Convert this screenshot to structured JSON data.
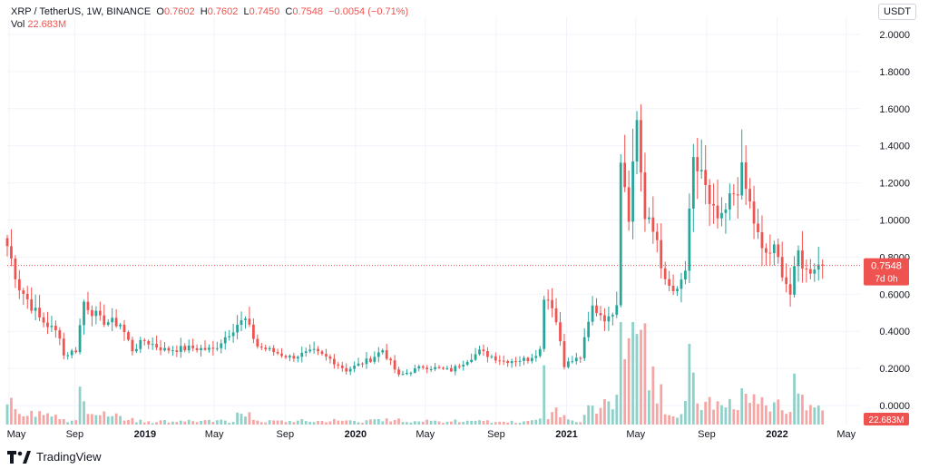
{
  "header": {
    "symbol": "XRP / TetherUS, 1W, BINANCE",
    "o_label": "O",
    "o_value": "0.7602",
    "h_label": "H",
    "h_value": "0.7602",
    "l_label": "L",
    "l_value": "0.7450",
    "c_label": "C",
    "c_value": "0.7548",
    "change": "−0.0054 (−0.71%)",
    "vol_label": "Vol",
    "vol_value": "22.683M"
  },
  "currency_button": "USDT",
  "price_tag": {
    "price": "0.7548",
    "countdown": "7d 0h"
  },
  "volume_tag": "22.683M",
  "footer": {
    "brand": "TradingView"
  },
  "colors": {
    "up": "#26a69a",
    "down": "#ef5350",
    "up_volume": "#8fd0c8",
    "down_volume": "#f5a5a3",
    "grid": "#f0f3fa"
  },
  "chart_data": {
    "type": "candlestick",
    "title": "XRP / TetherUS, 1W, BINANCE",
    "ylim": [
      0,
      2.0
    ],
    "y_ticks": [
      "2.0000",
      "1.8000",
      "1.6000",
      "1.4000",
      "1.2000",
      "1.0000",
      "0.8000",
      "0.6000",
      "0.4000",
      "0.2000",
      "0.0000"
    ],
    "x_ticks": [
      "May",
      "Sep",
      "2019",
      "May",
      "Sep",
      "2020",
      "May",
      "Sep",
      "2021",
      "May",
      "Sep",
      "2022",
      "May"
    ],
    "last_price": 0.7548,
    "close_anchors": [
      [
        "2018-05-07",
        0.86
      ],
      [
        "2018-05-28",
        0.64
      ],
      [
        "2018-07-02",
        0.47
      ],
      [
        "2018-08-06",
        0.38
      ],
      [
        "2018-08-13",
        0.27
      ],
      [
        "2018-09-03",
        0.3
      ],
      [
        "2018-09-17",
        0.56
      ],
      [
        "2018-10-15",
        0.46
      ],
      [
        "2018-11-19",
        0.44
      ],
      [
        "2018-12-10",
        0.3
      ],
      [
        "2018-12-31",
        0.35
      ],
      [
        "2019-02-04",
        0.3
      ],
      [
        "2019-03-25",
        0.31
      ],
      [
        "2019-04-29",
        0.3
      ],
      [
        "2019-06-10",
        0.44
      ],
      [
        "2019-06-24",
        0.46
      ],
      [
        "2019-07-15",
        0.32
      ],
      [
        "2019-09-09",
        0.26
      ],
      [
        "2019-10-21",
        0.29
      ],
      [
        "2019-11-18",
        0.25
      ],
      [
        "2019-12-16",
        0.19
      ],
      [
        "2020-01-27",
        0.25
      ],
      [
        "2020-02-17",
        0.3
      ],
      [
        "2020-03-16",
        0.16
      ],
      [
        "2020-04-27",
        0.21
      ],
      [
        "2020-06-15",
        0.19
      ],
      [
        "2020-08-03",
        0.29
      ],
      [
        "2020-09-14",
        0.24
      ],
      [
        "2020-10-26",
        0.25
      ],
      [
        "2020-11-16",
        0.3
      ],
      [
        "2020-11-23",
        0.6
      ],
      [
        "2020-12-07",
        0.55
      ],
      [
        "2020-12-21",
        0.35
      ],
      [
        "2020-12-28",
        0.22
      ],
      [
        "2021-01-25",
        0.26
      ],
      [
        "2021-02-15",
        0.53
      ],
      [
        "2021-03-15",
        0.46
      ],
      [
        "2021-03-29",
        0.57
      ],
      [
        "2021-04-05",
        1.36
      ],
      [
        "2021-04-19",
        1.05
      ],
      [
        "2021-05-03",
        1.55
      ],
      [
        "2021-05-17",
        1.0
      ],
      [
        "2021-06-07",
        0.9
      ],
      [
        "2021-06-21",
        0.65
      ],
      [
        "2021-07-12",
        0.6
      ],
      [
        "2021-07-26",
        0.73
      ],
      [
        "2021-08-09",
        1.28
      ],
      [
        "2021-08-23",
        1.27
      ],
      [
        "2021-09-06",
        1.05
      ],
      [
        "2021-09-27",
        0.98
      ],
      [
        "2021-10-11",
        1.1
      ],
      [
        "2021-11-01",
        1.24
      ],
      [
        "2021-11-15",
        1.08
      ],
      [
        "2021-12-06",
        0.82
      ],
      [
        "2021-12-27",
        0.83
      ],
      [
        "2022-01-10",
        0.73
      ],
      [
        "2022-01-24",
        0.6
      ],
      [
        "2022-02-07",
        0.82
      ],
      [
        "2022-02-21",
        0.72
      ],
      [
        "2022-03-07",
        0.76
      ],
      [
        "2022-03-21",
        0.7548
      ]
    ],
    "volume_note": "Volume bars rise from roughly 0.02 scale in 2018-2020 to peaks near April 2021"
  }
}
